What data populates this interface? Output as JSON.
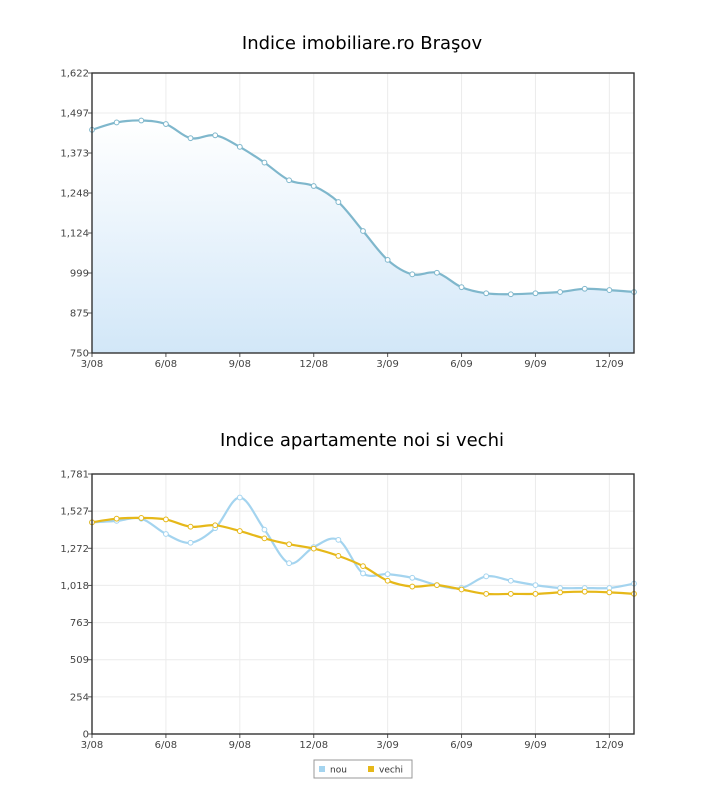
{
  "chart_data": [
    {
      "type": "area",
      "title": "Indice imobiliare.ro Braşov",
      "xlabel": "",
      "ylabel": "",
      "x_tick_labels": [
        "3/08",
        "6/08",
        "9/08",
        "12/08",
        "3/09",
        "6/09",
        "9/09",
        "12/09"
      ],
      "y_tick_labels": [
        "750",
        "875",
        "999",
        "1,124",
        "1,248",
        "1,373",
        "1,497",
        "1,622"
      ],
      "ylim": [
        750,
        1622
      ],
      "grid": true,
      "series": [
        {
          "values": [
            1445,
            1468,
            1474,
            1463,
            1419,
            1428,
            1392,
            1343,
            1288,
            1270,
            1220,
            1130,
            1040,
            995,
            1000,
            955,
            936,
            933,
            936,
            940,
            950,
            946,
            940
          ],
          "color": "#7fb7cc"
        }
      ]
    },
    {
      "type": "line",
      "title": "Indice apartamente noi si vechi",
      "xlabel": "",
      "ylabel": "",
      "x_tick_labels": [
        "3/08",
        "6/08",
        "9/08",
        "12/08",
        "3/09",
        "6/09",
        "9/09",
        "12/09"
      ],
      "y_tick_labels": [
        "0",
        "254",
        "509",
        "763",
        "1,018",
        "1,272",
        "1,527",
        "1,781"
      ],
      "ylim": [
        0,
        1781
      ],
      "grid": true,
      "legend_position": "bottom-center",
      "series": [
        {
          "name": "nou",
          "color": "#a4d4ef",
          "values": [
            1450,
            1460,
            1475,
            1370,
            1310,
            1410,
            1620,
            1400,
            1170,
            1280,
            1330,
            1100,
            1095,
            1070,
            1020,
            1000,
            1080,
            1050,
            1020,
            1000,
            1000,
            1000,
            1030
          ]
        },
        {
          "name": "vechi",
          "color": "#e6b819",
          "values": [
            1450,
            1475,
            1480,
            1470,
            1420,
            1430,
            1390,
            1340,
            1300,
            1270,
            1220,
            1150,
            1050,
            1010,
            1020,
            990,
            960,
            960,
            960,
            970,
            975,
            970,
            960
          ]
        }
      ]
    }
  ]
}
